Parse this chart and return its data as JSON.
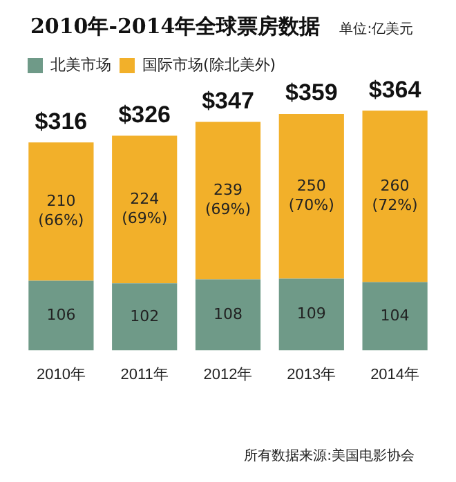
{
  "chart_data": {
    "type": "bar",
    "title": "2010年-2014年全球票房数据",
    "subtitle": "单位:亿美元",
    "stacked": true,
    "legend": "top left",
    "categories": [
      "2010年",
      "2011年",
      "2012年",
      "2013年",
      "2014年"
    ],
    "series": [
      {
        "name": "北美市场",
        "color": "#6f9a88",
        "values": [
          106,
          102,
          108,
          109,
          104
        ],
        "value_labels": [
          "106",
          "102",
          "108",
          "109",
          "104"
        ]
      },
      {
        "name": "国际市场(除北美外)",
        "color": "#f2b02a",
        "values": [
          210,
          224,
          239,
          250,
          260
        ],
        "value_labels": [
          "210\n(66%)",
          "224\n(69%)",
          "239\n(69%)",
          "250\n(70%)",
          "260\n(72%)"
        ]
      }
    ],
    "totals": [
      "$316",
      "$326",
      "$347",
      "$359",
      "$364"
    ],
    "annotations": [
      "所有数据来源:美国电影协会"
    ]
  }
}
